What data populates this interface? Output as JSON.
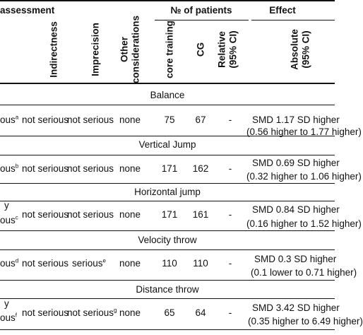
{
  "header": {
    "assessment": "assessment",
    "n_patients": "№ of patients",
    "effect": "Effect",
    "col_partial": "",
    "col_indirectness": "Indirectness",
    "col_imprecision": "Imprecision",
    "col_other": "Other considerations",
    "col_core": "core training",
    "col_cg": "CG",
    "col_relative": "Relative (95% CI)",
    "col_absolute": "Absolute (95% CI)"
  },
  "outcomes": [
    {
      "section": "Balance",
      "first_line": "",
      "first_cut": "ous",
      "first_sup": "a",
      "indirectness": "not serious",
      "imprecision": "not serious",
      "imprecision_sup": "",
      "other": "none",
      "core": "75",
      "cg": "67",
      "relative": "-",
      "absolute_1": "SMD 1.17 SD higher",
      "absolute_2": "(0.56 higher to 1.77 higher)"
    },
    {
      "section": "Vertical Jump",
      "first_line": "",
      "first_cut": "ous",
      "first_sup": "b",
      "indirectness": "not serious",
      "imprecision": "not serious",
      "imprecision_sup": "",
      "other": "none",
      "core": "171",
      "cg": "162",
      "relative": "-",
      "absolute_1": "SMD 0.69 SD higher",
      "absolute_2": "(0.32 higher to 1.06 higher)"
    },
    {
      "section": "Horizontal jump",
      "first_line": "y",
      "first_cut": "ous",
      "first_sup": "c",
      "indirectness": "not serious",
      "imprecision": "not serious",
      "imprecision_sup": "",
      "other": "none",
      "core": "171",
      "cg": "161",
      "relative": "-",
      "absolute_1": "SMD 0.84 SD higher",
      "absolute_2": "(0.16 higher to 1.52 higher)"
    },
    {
      "section": "Velocity throw",
      "first_line": "",
      "first_cut": "ous",
      "first_sup": "d",
      "indirectness": "not serious",
      "imprecision": "serious",
      "imprecision_sup": "e",
      "other": "none",
      "core": "110",
      "cg": "110",
      "relative": "-",
      "absolute_1": "SMD 0.3 SD higher",
      "absolute_2": "(0.1 lower to 0.71 higher)"
    },
    {
      "section": "Distance throw",
      "first_line": "y",
      "first_cut": "ous",
      "first_sup": "f",
      "indirectness": "not serious",
      "imprecision": "not serious",
      "imprecision_sup": "g",
      "other": "none",
      "core": "65",
      "cg": "64",
      "relative": "-",
      "absolute_1": "SMD 3.42 SD higher",
      "absolute_2": "(0.35 higher to 6.49 higher)"
    }
  ]
}
